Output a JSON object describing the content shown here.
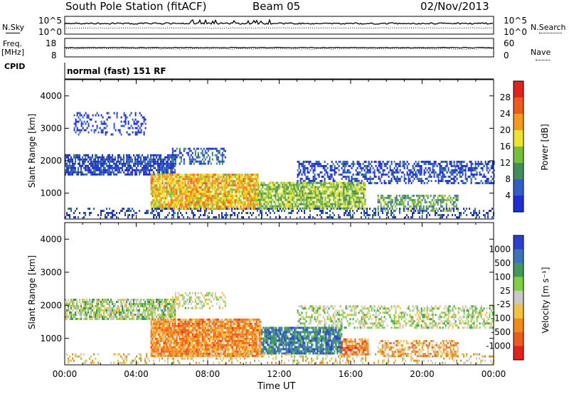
{
  "header": {
    "title": "South Pole Station (fitACF)",
    "beam": "Beam 05",
    "date": "02/Nov/2013"
  },
  "aux_panels": {
    "nsky_label": "N.Sky",
    "nsearch_label": "N.Search",
    "freq_label_1": "Freq.",
    "freq_label_2": "[MHz]",
    "nave_label": "Nave",
    "cpid_label": "CPID",
    "cpid_value": "normal (fast) 151 RF",
    "noise_ticks_left": [
      "10^5",
      "10^0"
    ],
    "noise_ticks_right": [
      "10^5",
      "10^0"
    ],
    "freq_ticks_left": [
      "18",
      "8"
    ],
    "nave_ticks_right": [
      "60",
      "0"
    ]
  },
  "chart_data": [
    {
      "type": "heatmap",
      "panel": "power",
      "ylabel": "Slant Range [km]",
      "yticks": [
        "1000",
        "2000",
        "3000",
        "4000"
      ],
      "ylim": [
        200,
        4500
      ],
      "xlim_hours": [
        0,
        24
      ],
      "colorbar_label": "Power [dB]",
      "colorbar_ticks": [
        "4",
        "8",
        "12",
        "16",
        "20",
        "24",
        "28"
      ],
      "colorbar_colors": [
        "#1f2fd6",
        "#2f5fc8",
        "#3f8f5a",
        "#77c13a",
        "#f0e32a",
        "#f39a1a",
        "#ee5a1a",
        "#e6201a"
      ],
      "bands": [
        {
          "t0": 0.0,
          "t1": 6.2,
          "r0": 1600,
          "r1": 2200,
          "level": 0.12,
          "density": 0.75
        },
        {
          "t0": 6.0,
          "t1": 9.0,
          "r0": 1900,
          "r1": 2400,
          "level": 0.18,
          "density": 0.45
        },
        {
          "t0": 13.0,
          "t1": 24.0,
          "r0": 1300,
          "r1": 2000,
          "level": 0.1,
          "density": 0.5
        },
        {
          "t0": 0.5,
          "t1": 4.5,
          "r0": 2800,
          "r1": 3500,
          "level": 0.06,
          "density": 0.25
        },
        {
          "t0": 4.8,
          "t1": 10.8,
          "r0": 500,
          "r1": 1600,
          "level": 0.62,
          "density": 0.9
        },
        {
          "t0": 10.8,
          "t1": 16.8,
          "r0": 550,
          "r1": 1350,
          "level": 0.45,
          "density": 0.85
        },
        {
          "t0": 17.5,
          "t1": 22.0,
          "r0": 450,
          "r1": 950,
          "level": 0.38,
          "density": 0.6
        },
        {
          "t0": 0.0,
          "t1": 24.0,
          "r0": 250,
          "r1": 550,
          "level": 0.1,
          "density": 0.3
        }
      ]
    },
    {
      "type": "heatmap",
      "panel": "velocity",
      "ylabel": "Slant Range [km]",
      "yticks": [
        "1000",
        "2000",
        "3000",
        "4000"
      ],
      "ylim": [
        200,
        4500
      ],
      "xlim_hours": [
        0,
        24
      ],
      "xticks": [
        "00:00",
        "04:00",
        "08:00",
        "12:00",
        "16:00",
        "20:00",
        "00:00"
      ],
      "xlabel": "Time UT",
      "colorbar_label": "Velocity [m s⁻¹]",
      "colorbar_ticks": [
        "1000",
        "500",
        "100",
        "25",
        "-25",
        "-100",
        "-500",
        "-1000"
      ],
      "colorbar_colors": [
        "#2a3fd0",
        "#3b74b8",
        "#3f9a5a",
        "#7fd040",
        "#c8c8c8",
        "#f2c23a",
        "#f28a1a",
        "#ee5a1a",
        "#e6201a"
      ],
      "bands": [
        {
          "t0": 0.0,
          "t1": 6.2,
          "r0": 1600,
          "r1": 2200,
          "level": 0.44,
          "density": 0.75
        },
        {
          "t0": 6.0,
          "t1": 9.0,
          "r0": 1900,
          "r1": 2400,
          "level": 0.5,
          "density": 0.4
        },
        {
          "t0": 13.0,
          "t1": 24.0,
          "r0": 1300,
          "r1": 2000,
          "level": 0.45,
          "density": 0.45
        },
        {
          "t0": 4.8,
          "t1": 11.0,
          "r0": 500,
          "r1": 1600,
          "level": 0.72,
          "density": 0.9
        },
        {
          "t0": 11.0,
          "t1": 15.5,
          "r0": 550,
          "r1": 1350,
          "level": 0.2,
          "density": 0.85
        },
        {
          "t0": 15.5,
          "t1": 17.0,
          "r0": 500,
          "r1": 1000,
          "level": 0.75,
          "density": 0.8
        },
        {
          "t0": 17.5,
          "t1": 22.0,
          "r0": 450,
          "r1": 950,
          "level": 0.68,
          "density": 0.55
        },
        {
          "t0": 0.0,
          "t1": 24.0,
          "r0": 250,
          "r1": 550,
          "level": 0.6,
          "density": 0.25
        }
      ]
    }
  ]
}
